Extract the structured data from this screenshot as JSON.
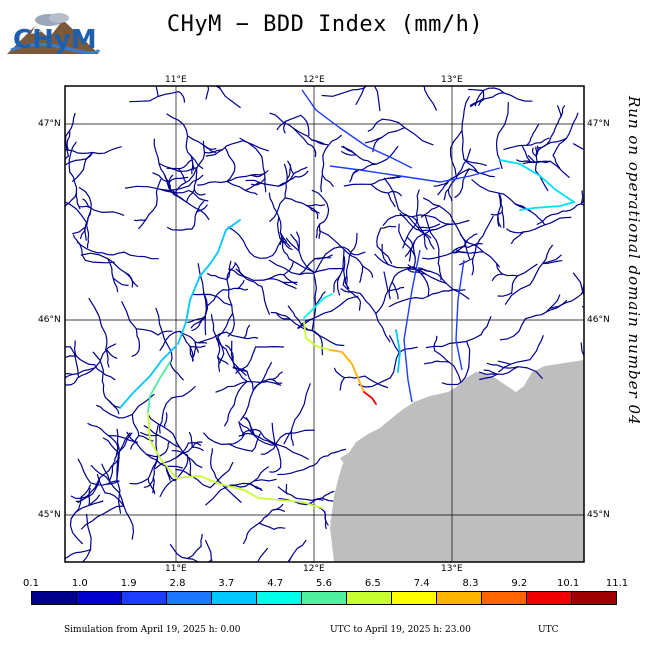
{
  "header": {
    "title": "CHyM − BDD Index (mm/h)",
    "logo_text": "CHyM"
  },
  "map": {
    "lon_labels": [
      "11°E",
      "12°E",
      "13°E"
    ],
    "lat_labels": [
      "47°N",
      "46°N",
      "45°N"
    ],
    "side_text": "Run on operational domain number 04",
    "colors": {
      "river_base": "#00008c",
      "land": "#ffffff",
      "sea": "#bebebe"
    }
  },
  "legend": {
    "ticks": [
      "0.1",
      "1.0",
      "1.9",
      "2.8",
      "3.7",
      "4.7",
      "5.6",
      "6.5",
      "7.4",
      "8.3",
      "9.2",
      "10.1",
      "11.1"
    ],
    "colors": [
      "#00008c",
      "#0000cd",
      "#1e3cff",
      "#1e78ff",
      "#00c8ff",
      "#00ffe6",
      "#50f0a0",
      "#c8ff32",
      "#ffff00",
      "#ffb400",
      "#ff6400",
      "#f00000",
      "#a00000"
    ]
  },
  "footer": {
    "sim_from": "Simulation from April 19, 2025 h: 0.00",
    "sim_to": "UTC to April 19, 2025 h: 23.00",
    "tz": "UTC"
  }
}
